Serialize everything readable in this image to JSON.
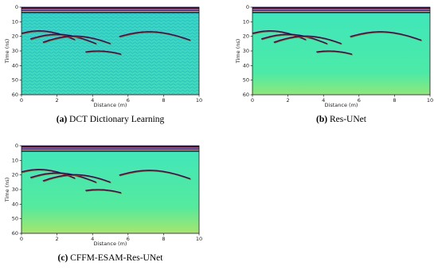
{
  "panels": [
    {
      "tag": "(a)",
      "caption": "DCT Dictionary Learning",
      "xlabel": "Distance (m)",
      "ylabel": "Time (ns)",
      "xlim": [
        0,
        10
      ],
      "ylim": [
        60,
        0
      ],
      "xticks": [
        0,
        2,
        4,
        6,
        8,
        10
      ],
      "yticks": [
        0,
        10,
        20,
        30,
        40,
        50,
        60
      ]
    },
    {
      "tag": "(b)",
      "caption": "Res-UNet",
      "xlabel": "Distance (m)",
      "ylabel": "Time (ns)",
      "xlim": [
        0,
        10
      ],
      "ylim": [
        60,
        0
      ],
      "xticks": [
        0,
        2,
        4,
        6,
        8,
        10
      ],
      "yticks": [
        0,
        10,
        20,
        30,
        40,
        50,
        60
      ]
    },
    {
      "tag": "(c)",
      "caption": "CFFM-ESAM-Res-UNet",
      "xlabel": "Distance (m)",
      "ylabel": "Time (ns)",
      "xlim": [
        0,
        10
      ],
      "ylim": [
        60,
        0
      ],
      "xticks": [
        0,
        2,
        4,
        6,
        8,
        10
      ],
      "yticks": [
        0,
        10,
        20,
        30,
        40,
        50,
        60
      ]
    }
  ]
}
